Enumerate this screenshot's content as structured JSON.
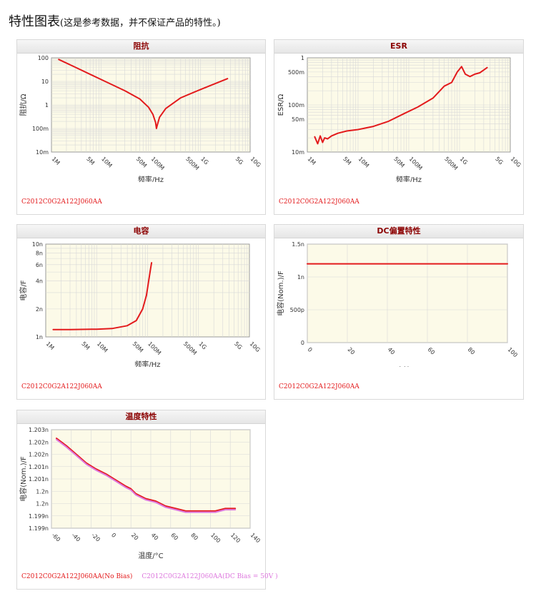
{
  "page": {
    "title": "特性图表",
    "subtitle": "(这是参考数据，并不保证产品的特性。)"
  },
  "colors": {
    "line": "#e31a1c",
    "pink": "#dd77dd",
    "plot_bg": "#fcfae8",
    "grid": "#d8d8d8"
  },
  "chart_data": [
    {
      "id": "impedance",
      "type": "line",
      "title": "阻抗",
      "xlabel": "频率/Hz",
      "ylabel": "阻抗/Ω",
      "xscale": "log",
      "yscale": "log",
      "xlim": [
        1000000,
        10000000000
      ],
      "ylim": [
        0.01,
        100
      ],
      "xticks": [
        1000000,
        5000000,
        10000000,
        50000000,
        100000000,
        500000000,
        1000000000,
        5000000000,
        10000000000
      ],
      "xtick_labels": [
        "1M",
        "5M",
        "10M",
        "50M",
        "100M",
        "500M",
        "1G",
        "5G",
        "10G"
      ],
      "yticks": [
        0.01,
        0.1,
        1,
        10,
        100
      ],
      "ytick_labels": [
        "10m",
        "100m",
        "1",
        "10",
        "100"
      ],
      "legend": "C2012C0G2A122J060AA",
      "series": [
        {
          "color": "#e31a1c",
          "x": [
            1400000,
            3000000,
            10000000,
            30000000,
            60000000,
            90000000,
            110000000,
            125000000,
            130000000,
            135000000,
            150000000,
            200000000,
            400000000,
            1000000000,
            3500000000
          ],
          "y": [
            85,
            40,
            12,
            4,
            1.8,
            0.8,
            0.4,
            0.18,
            0.1,
            0.14,
            0.3,
            0.7,
            2,
            4.5,
            13
          ]
        }
      ]
    },
    {
      "id": "esr",
      "type": "line",
      "title": "ESR",
      "xlabel": "频率/Hz",
      "ylabel": "ESR/Ω",
      "xscale": "log",
      "yscale": "log",
      "xlim": [
        1000000,
        10000000000
      ],
      "ylim": [
        0.01,
        1
      ],
      "xticks": [
        1000000,
        5000000,
        10000000,
        50000000,
        100000000,
        500000000,
        1000000000,
        5000000000,
        10000000000
      ],
      "xtick_labels": [
        "1M",
        "5M",
        "10M",
        "50M",
        "100M",
        "500M",
        "1G",
        "5G",
        "10G"
      ],
      "yticks": [
        0.01,
        0.05,
        0.1,
        0.5,
        1
      ],
      "ytick_labels": [
        "10m",
        "50m",
        "100m",
        "500m",
        "1"
      ],
      "legend": "C2012C0G2A122J060AA",
      "series": [
        {
          "color": "#e31a1c",
          "x": [
            1400000,
            1600000,
            1800000,
            2000000,
            2200000,
            2500000,
            3000000,
            4000000,
            6000000,
            10000000,
            20000000,
            40000000,
            80000000,
            150000000,
            300000000,
            500000000,
            700000000,
            900000000,
            1100000000,
            1300000000,
            1600000000,
            2000000000,
            2500000000,
            3000000000,
            3500000000
          ],
          "y": [
            0.021,
            0.015,
            0.022,
            0.016,
            0.02,
            0.019,
            0.022,
            0.025,
            0.028,
            0.03,
            0.035,
            0.045,
            0.065,
            0.09,
            0.14,
            0.25,
            0.3,
            0.5,
            0.65,
            0.45,
            0.4,
            0.45,
            0.48,
            0.55,
            0.62
          ]
        }
      ]
    },
    {
      "id": "capacitance",
      "type": "line",
      "title": "电容",
      "xlabel": "频率/Hz",
      "ylabel": "电容/F",
      "xscale": "log",
      "yscale": "log",
      "xlim": [
        1000000,
        10000000000
      ],
      "ylim": [
        1e-09,
        1e-08
      ],
      "xticks": [
        1000000,
        5000000,
        10000000,
        50000000,
        100000000,
        500000000,
        1000000000,
        5000000000,
        10000000000
      ],
      "xtick_labels": [
        "1M",
        "5M",
        "10M",
        "50M",
        "100M",
        "500M",
        "1G",
        "5G",
        "10G"
      ],
      "yticks": [
        1e-09,
        2e-09,
        4e-09,
        6e-09,
        8e-09,
        1e-08
      ],
      "ytick_labels": [
        "1n",
        "2n",
        "4n",
        "6n",
        "8n",
        "10n"
      ],
      "legend": "C2012C0G2A122J060AA",
      "series": [
        {
          "color": "#e31a1c",
          "x": [
            1400000,
            3000000,
            10000000,
            20000000,
            40000000,
            60000000,
            80000000,
            95000000,
            105000000,
            115000000,
            120000000
          ],
          "y": [
            1.2e-09,
            1.2e-09,
            1.21e-09,
            1.23e-09,
            1.32e-09,
            1.5e-09,
            2e-09,
            2.8e-09,
            4e-09,
            5.5e-09,
            6.3e-09
          ]
        }
      ]
    },
    {
      "id": "dc_bias",
      "type": "line",
      "title": "DC偏置特性",
      "xlabel": "直流/V",
      "ylabel": "电容(Nom.)/F",
      "xlim": [
        0,
        100
      ],
      "ylim": [
        0,
        1.5e-09
      ],
      "xticks": [
        0,
        20,
        40,
        60,
        80,
        100
      ],
      "xtick_labels": [
        "0",
        "20",
        "40",
        "60",
        "80",
        "100"
      ],
      "yticks": [
        0,
        5e-10,
        1e-09,
        1.5e-09
      ],
      "ytick_labels": [
        "0",
        "500p",
        "1n",
        "1.5n"
      ],
      "legend": "C2012C0G2A122J060AA",
      "series": [
        {
          "color": "#e31a1c",
          "x": [
            0,
            100
          ],
          "y": [
            1.2e-09,
            1.2e-09
          ]
        }
      ]
    },
    {
      "id": "temperature",
      "type": "line",
      "title": "温度特性",
      "xlabel": "温度/°C",
      "ylabel": "电容(Nom.)/F",
      "xlim": [
        -60,
        140
      ],
      "ylim": [
        1.199,
        1.203
      ],
      "xticks": [
        -60,
        -40,
        -20,
        0,
        20,
        40,
        60,
        80,
        100,
        120,
        140
      ],
      "xtick_labels": [
        "-60",
        "-40",
        "-20",
        "0",
        "20",
        "40",
        "60",
        "80",
        "100",
        "120",
        "140"
      ],
      "yticks": [
        1.199,
        1.1995,
        1.2,
        1.2005,
        1.201,
        1.2015,
        1.202,
        1.2025,
        1.203
      ],
      "ytick_labels": [
        "1.199n",
        "1.199n",
        "1.2n",
        "1.2n",
        "1.201n",
        "1.201n",
        "1.202n",
        "1.202n",
        "1.203n"
      ],
      "legend": [
        "C2012C0G2A122J060AA(No Bias)",
        "C2012C0G2A122J060AA(DC Bias = 50V )"
      ],
      "series": [
        {
          "color": "#e31a1c",
          "x": [
            -55,
            -45,
            -35,
            -25,
            -15,
            -5,
            5,
            15,
            20,
            25,
            35,
            45,
            55,
            65,
            75,
            85,
            95,
            105,
            115,
            125
          ],
          "y": [
            1.20265,
            1.20235,
            1.202,
            1.20165,
            1.2014,
            1.2012,
            1.20095,
            1.2007,
            1.2006,
            1.2004,
            1.2002,
            1.2001,
            1.1999,
            1.1998,
            1.1997,
            1.1997,
            1.1997,
            1.1997,
            1.1998,
            1.1998
          ]
        },
        {
          "color": "#dd77dd",
          "x": [
            -55,
            -45,
            -35,
            -25,
            -15,
            -5,
            5,
            15,
            20,
            25,
            35,
            45,
            55,
            65,
            75,
            85,
            95,
            105,
            115,
            125
          ],
          "y": [
            1.2026,
            1.2023,
            1.20195,
            1.2016,
            1.20135,
            1.20115,
            1.2009,
            1.20065,
            1.20055,
            1.20035,
            1.20015,
            1.20005,
            1.19985,
            1.19975,
            1.19965,
            1.19965,
            1.19965,
            1.19965,
            1.19975,
            1.19975
          ]
        }
      ]
    }
  ]
}
